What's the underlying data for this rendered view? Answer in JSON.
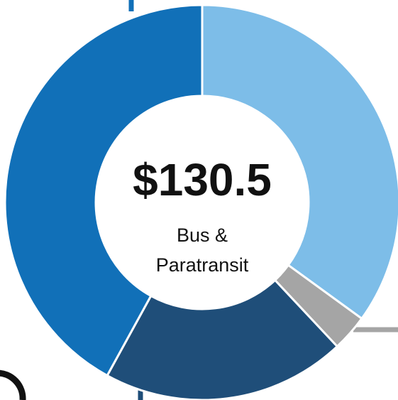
{
  "chart_data": {
    "type": "pie",
    "donut": true,
    "center_title": "$130.5",
    "center_label": [
      "Bus &",
      "Paratransit"
    ],
    "categories": [
      null,
      null,
      null,
      null
    ],
    "values": [
      35,
      3,
      20,
      42
    ],
    "colors": [
      "#7dbde8",
      "#a5a5a5",
      "#1f4e79",
      "#1170b8"
    ]
  }
}
